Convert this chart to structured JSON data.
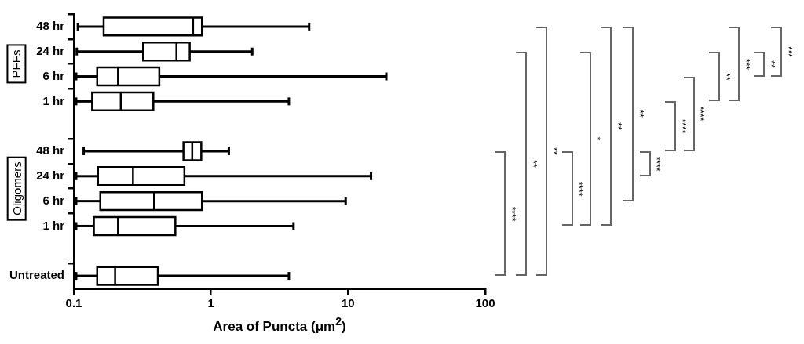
{
  "chart_data": {
    "type": "box",
    "orientation": "horizontal",
    "xlabel": "Area of Puncta (μm$^{2}$)",
    "categories": [
      "48 hr",
      "24 hr",
      "6 hr",
      "1 hr",
      null,
      "48 hr",
      "24 hr",
      "6 hr",
      "1 hr",
      null,
      "Untreated"
    ],
    "boxes": [
      {
        "low": 0.107,
        "q1": 0.165,
        "median": 0.74,
        "q3": 0.86,
        "high": 5.2
      },
      {
        "low": 0.105,
        "q1": 0.32,
        "median": 0.56,
        "q3": 0.7,
        "high": 2
      },
      {
        "low": 0.104,
        "q1": 0.148,
        "median": 0.21,
        "q3": 0.42,
        "high": 19
      },
      {
        "low": 0.104,
        "q1": 0.136,
        "median": 0.22,
        "q3": 0.38,
        "high": 3.7
      },
      null,
      {
        "low": 0.118,
        "q1": 0.63,
        "median": 0.73,
        "q3": 0.85,
        "high": 1.35
      },
      {
        "low": 0.104,
        "q1": 0.15,
        "median": 0.27,
        "q3": 0.64,
        "high": 14.7
      },
      {
        "low": 0.104,
        "q1": 0.156,
        "median": 0.385,
        "q3": 0.86,
        "high": 9.6
      },
      {
        "low": 0.104,
        "q1": 0.14,
        "median": 0.21,
        "q3": 0.55,
        "high": 4
      },
      null,
      {
        "low": 0.104,
        "q1": 0.148,
        "median": 0.2,
        "q3": 0.41,
        "high": 3.7
      }
    ],
    "log": "x",
    "xlim": [
      0.1,
      100
    ],
    "xticks": [
      0.1,
      1,
      10,
      100
    ],
    "grid": false,
    "legend": false,
    "annotations": [
      "PFFs",
      "Oligomers",
      "****",
      "**",
      "**",
      "****",
      "*",
      "**",
      "**",
      "****",
      "****",
      "****",
      "**",
      "***",
      "**",
      "***"
    ]
  }
}
